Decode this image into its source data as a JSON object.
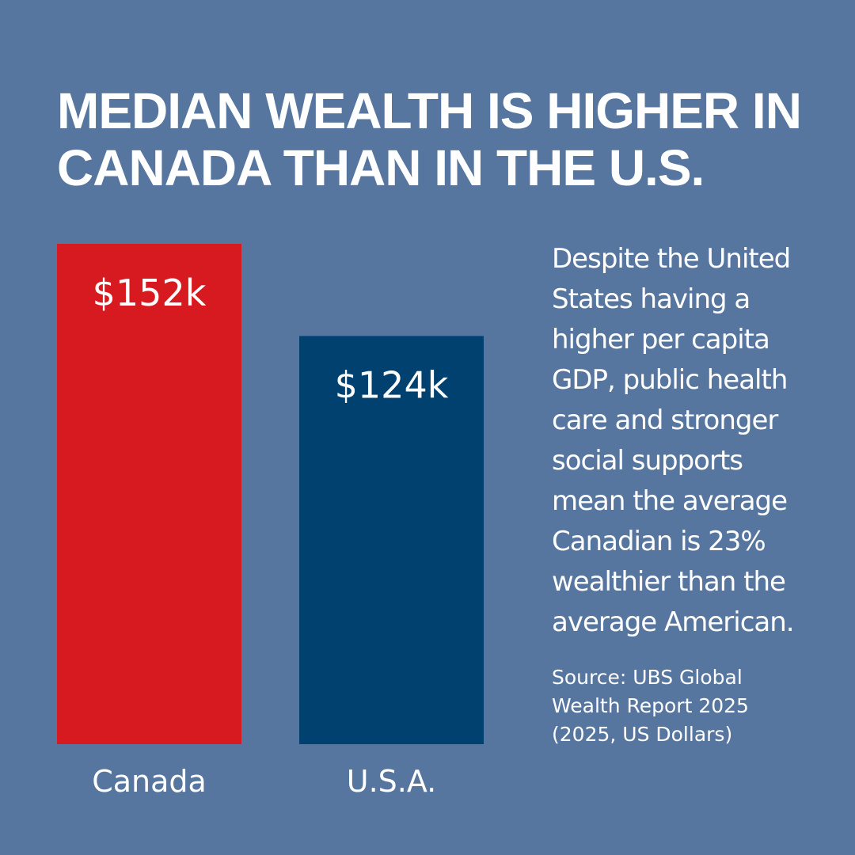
{
  "chart_data": {
    "type": "bar",
    "title": "MEDIAN WEALTH IS HIGHER IN CANADA THAN IN THE U.S.",
    "categories": [
      "Canada",
      "U.S.A."
    ],
    "values": [
      152,
      124
    ],
    "value_labels": [
      "$152k",
      "$124k"
    ],
    "colors": [
      "#d71920",
      "#004170"
    ],
    "description": "Despite the United States having a higher per capita GDP, public health care and stronger social supports mean the average Canadian is 23% wealthier than the average American.",
    "source": "Source: UBS Global Wealth Report 2025 (2025, US Dollars)"
  }
}
